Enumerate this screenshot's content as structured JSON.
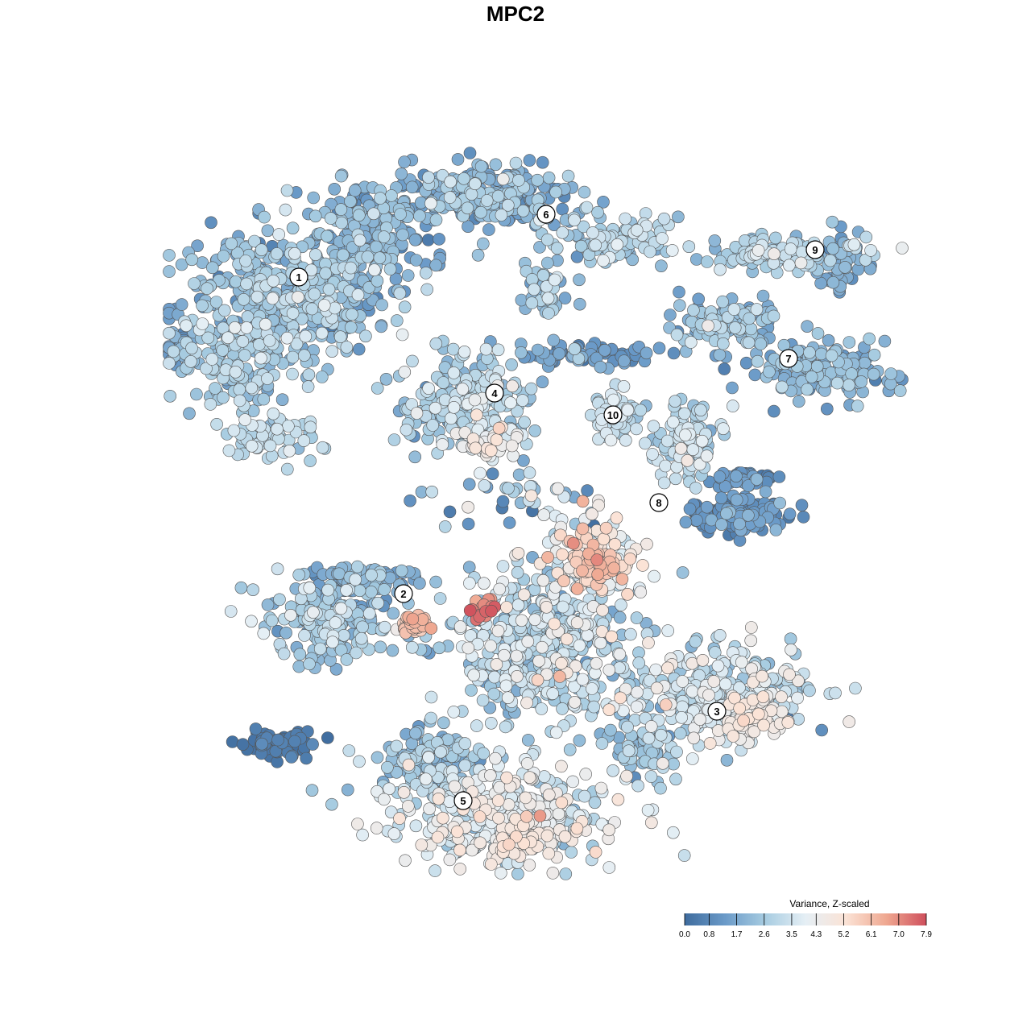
{
  "chart_data": {
    "type": "scatter",
    "title": "MPC2",
    "xlabel": "",
    "ylabel": "",
    "grid": false,
    "clusters": [
      {
        "label": "1"
      },
      {
        "label": "2"
      },
      {
        "label": "3"
      },
      {
        "label": "4"
      },
      {
        "label": "5"
      },
      {
        "label": "6"
      },
      {
        "label": "7"
      },
      {
        "label": "8"
      },
      {
        "label": "9"
      },
      {
        "label": "10"
      }
    ],
    "colorbar": {
      "title": "Variance, Z-scaled",
      "min": 0.0,
      "max": 7.9,
      "ticks": [
        "0.0",
        "0.8",
        "1.7",
        "2.6",
        "3.5",
        "4.3",
        "5.2",
        "6.1",
        "7.0",
        "7.9"
      ],
      "colors": [
        "#3f6c9e",
        "#6a9ac8",
        "#a7cce1",
        "#e5eff5",
        "#fbe3d6",
        "#efa891",
        "#cf4f5c"
      ],
      "placement": "bottom-right"
    }
  },
  "colors": {
    "point_stroke": "#555555",
    "label_fill": "#ffffff",
    "label_stroke": "#000000"
  }
}
